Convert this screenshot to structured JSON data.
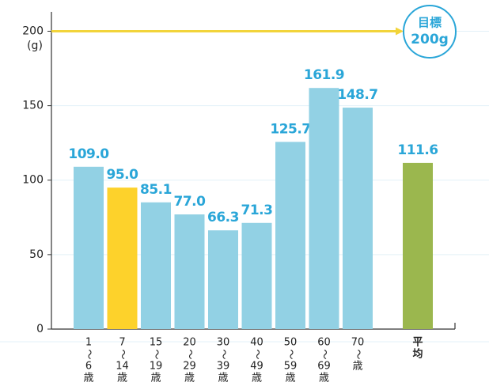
{
  "chart_data": {
    "type": "bar",
    "categories": [
      [
        "1",
        "〜",
        "6",
        "歳"
      ],
      [
        "7",
        "〜",
        "14",
        "歳"
      ],
      [
        "15",
        "〜",
        "19",
        "歳"
      ],
      [
        "20",
        "〜",
        "29",
        "歳"
      ],
      [
        "30",
        "〜",
        "39",
        "歳"
      ],
      [
        "40",
        "〜",
        "49",
        "歳"
      ],
      [
        "50",
        "〜",
        "59",
        "歳"
      ],
      [
        "60",
        "〜",
        "69",
        "歳"
      ],
      [
        "70",
        "〜",
        "歳"
      ],
      [
        "平",
        "均"
      ]
    ],
    "values": [
      109.0,
      95.0,
      85.1,
      77.0,
      66.3,
      71.3,
      125.7,
      161.9,
      148.7,
      111.6
    ],
    "value_labels": [
      "109.0",
      "95.0",
      "85.1",
      "77.0",
      "66.3",
      "71.3",
      "125.7",
      "161.9",
      "148.7",
      "111.6"
    ],
    "colors": [
      "#92d1e4",
      "#fdd22b",
      "#92d1e4",
      "#92d1e4",
      "#92d1e4",
      "#92d1e4",
      "#92d1e4",
      "#92d1e4",
      "#92d1e4",
      "#9bb74e"
    ],
    "y_unit": "(g)",
    "ylim": [
      0,
      213
    ],
    "yticks": [
      0,
      50,
      100,
      150,
      200
    ],
    "grid": true,
    "target": {
      "value": 200,
      "label": [
        "目標",
        "200g"
      ],
      "color": "#f2d43a"
    }
  }
}
